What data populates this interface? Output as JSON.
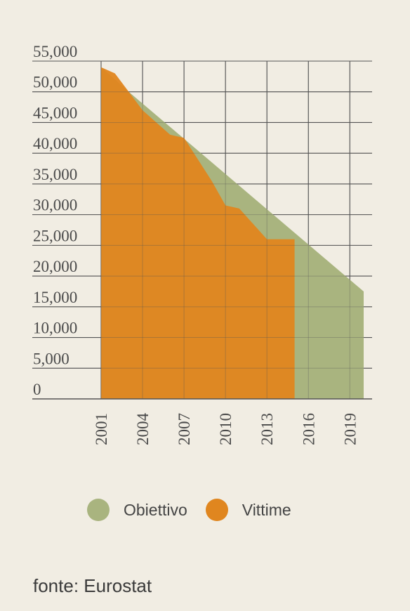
{
  "chart_data": {
    "type": "area",
    "title": "",
    "xlabel": "",
    "ylabel": "",
    "xlim": [
      2001,
      2020.3
    ],
    "ylim": [
      0,
      55000
    ],
    "x_ticks": [
      2001,
      2004,
      2007,
      2010,
      2013,
      2016,
      2019
    ],
    "x_tick_labels": [
      "2001",
      "2004",
      "2007",
      "2010",
      "2013",
      "2016",
      "2019"
    ],
    "y_ticks": [
      0,
      5000,
      10000,
      15000,
      20000,
      25000,
      30000,
      35000,
      40000,
      45000,
      50000,
      55000
    ],
    "y_tick_labels": [
      "0",
      "5,000",
      "10,000",
      "15,000",
      "20,000",
      "25,000",
      "30,000",
      "35,000",
      "40,000",
      "45,000",
      "50,000",
      "55,000"
    ],
    "grid": true,
    "legend_position": "bottom",
    "series": [
      {
        "name": "Obiettivo",
        "color": "#a9b47f",
        "x": [
          2001,
          2003,
          2020
        ],
        "y": [
          54000,
          50000,
          17500
        ]
      },
      {
        "name": "Vittime",
        "color": "#e0861f",
        "x": [
          2001,
          2002,
          2003,
          2004,
          2005,
          2006,
          2007,
          2008,
          2009,
          2010,
          2011,
          2012,
          2013,
          2014,
          2015
        ],
        "y": [
          54000,
          53000,
          50000,
          47000,
          45000,
          43000,
          42500,
          39000,
          35500,
          31500,
          31000,
          28500,
          26000,
          26000,
          26000
        ]
      }
    ]
  },
  "source_text": "fonte: Eurostat"
}
